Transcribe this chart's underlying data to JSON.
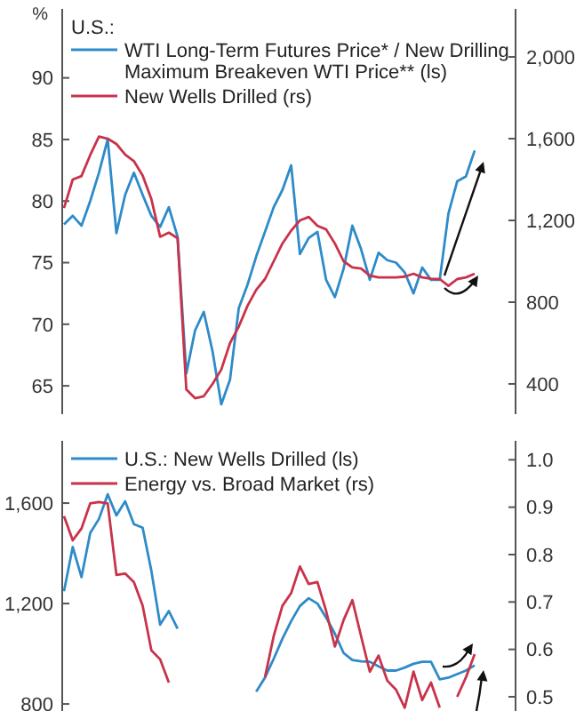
{
  "chart_data": [
    {
      "type": "line",
      "ylabel": "%",
      "legend_title": "U.S.:",
      "legend": "top left",
      "categories": [
        null,
        null,
        null,
        null,
        null,
        null,
        null,
        null,
        null,
        null,
        null,
        null,
        null,
        null,
        null,
        null,
        null,
        null,
        null,
        null,
        null,
        null,
        null,
        null,
        null,
        null,
        null,
        null,
        null,
        null,
        null,
        null,
        null,
        null,
        null,
        null,
        null,
        null,
        null,
        null,
        null,
        null,
        null,
        null,
        null,
        null,
        null,
        null
      ],
      "ylim": [
        62.7,
        95.6
      ],
      "yticks": [
        65,
        70,
        75,
        80,
        85,
        90
      ],
      "y2lim": [
        252,
        2235
      ],
      "y2ticks": [
        {
          "value": 400,
          "label": "400"
        },
        {
          "value": 800,
          "label": "800"
        },
        {
          "value": 1200,
          "label": "1,200"
        },
        {
          "value": 1600,
          "label": "1,600"
        },
        {
          "value": 2000,
          "label": "2,000"
        }
      ],
      "series": [
        {
          "name": "WTI Long-Term Futures Price* / New Drilling Maximum Breakeven WTI Price** (ls)",
          "color": "#2e8bc9",
          "axis": "y",
          "values": [
            78.1,
            78.8,
            78.0,
            80.0,
            82.3,
            85.0,
            77.4,
            80.5,
            82.3,
            80.5,
            78.8,
            77.9,
            79.5,
            77.1,
            66.0,
            69.5,
            71.0,
            67.8,
            63.5,
            65.5,
            71.3,
            73.2,
            75.5,
            77.5,
            79.5,
            80.9,
            82.9,
            75.7,
            77.0,
            77.5,
            73.6,
            72.2,
            74.5,
            78.0,
            76.1,
            73.6,
            75.8,
            75.2,
            75.0,
            74.2,
            72.5,
            74.6,
            73.6,
            73.6,
            79.0,
            81.6,
            82.0,
            84.1
          ]
        },
        {
          "name": "New Wells Drilled (rs)",
          "color": "#c8334a",
          "axis": "y2",
          "values": [
            1260,
            1400,
            1417,
            1520,
            1610,
            1600,
            1574,
            1522,
            1490,
            1420,
            1304,
            1120,
            1140,
            1113,
            373,
            330,
            340,
            400,
            470,
            600,
            680,
            782,
            860,
            913,
            1000,
            1087,
            1150,
            1200,
            1217,
            1174,
            1156,
            1087,
            1000,
            970,
            965,
            930,
            921,
            921,
            921,
            925,
            939,
            921,
            915,
            913,
            880,
            913,
            921,
            939
          ]
        }
      ]
    },
    {
      "type": "line",
      "legend": "top left",
      "categories": [
        null,
        null,
        null,
        null,
        null,
        null,
        null,
        null,
        null,
        null,
        null,
        null,
        null,
        null,
        null,
        null,
        null,
        null,
        null,
        null,
        null,
        null,
        null,
        null,
        null,
        null,
        null,
        null,
        null,
        null,
        null,
        null,
        null,
        null,
        null,
        null,
        null,
        null,
        null,
        null,
        null,
        null,
        null,
        null,
        null,
        null,
        null,
        null
      ],
      "ylim": [
        772,
        1848
      ],
      "yticks": [
        {
          "value": 800,
          "label": "800"
        },
        {
          "value": 1200,
          "label": "1,200"
        },
        {
          "value": 1600,
          "label": "1,600"
        }
      ],
      "y2lim": [
        0.47,
        1.04
      ],
      "y2ticks": [
        0.5,
        0.6,
        0.7,
        0.8,
        0.9,
        {
          "value": 1,
          "label": "1.0"
        }
      ],
      "series": [
        {
          "name": "U.S.: New Wells Drilled (ls)",
          "color": "#2e8bc9",
          "axis": "y",
          "values": [
            1249,
            1425,
            1305,
            1481,
            1537,
            1635,
            1551,
            1607,
            1516,
            1502,
            1330,
            1116,
            1170,
            1100,
            null,
            null,
            null,
            null,
            null,
            null,
            null,
            null,
            849,
            905,
            980,
            1060,
            1130,
            1190,
            1221,
            1200,
            1144,
            1080,
            1003,
            975,
            970,
            968,
            950,
            933,
            933,
            945,
            960,
            968,
            968,
            898,
            905,
            919,
            933,
            954
          ]
        },
        {
          "name": "Energy vs. Broad Market (rs)",
          "color": "#c8334a",
          "axis": "y2",
          "values": [
            0.881,
            0.83,
            0.855,
            0.908,
            0.911,
            0.908,
            0.757,
            0.76,
            0.742,
            0.692,
            0.598,
            0.579,
            0.53,
            null,
            null,
            null,
            null,
            null,
            null,
            null,
            null,
            null,
            null,
            0.541,
            0.628,
            0.692,
            0.719,
            0.775,
            0.738,
            0.742,
            0.681,
            0.606,
            0.662,
            0.704,
            0.628,
            0.553,
            0.587,
            0.534,
            0.515,
            0.477,
            0.553,
            0.493,
            0.53,
            0.477,
            null,
            0.5,
            0.541,
            0.59
          ]
        }
      ]
    }
  ]
}
